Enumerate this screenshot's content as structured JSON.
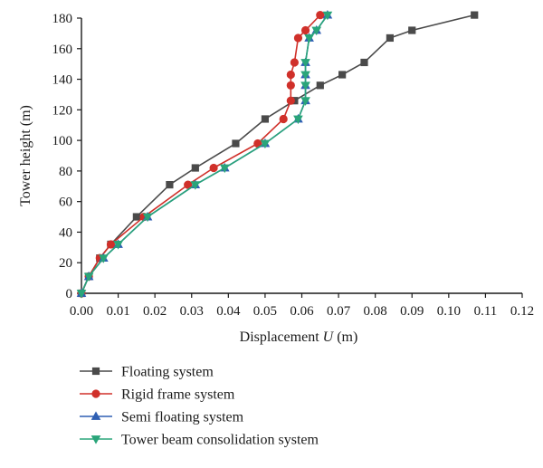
{
  "colors": {
    "floating": "#4a4a4a",
    "rigid": "#d0302a",
    "semi": "#2f5fb3",
    "tower": "#2aa57a",
    "axis": "#1a1a1a"
  },
  "chart_data": {
    "type": "line",
    "xlabel": "Displacement U (m)",
    "xlabel_main": "Displacement ",
    "xlabel_var": "U",
    "xlabel_unit": " (m)",
    "ylabel": "Tower height (m)",
    "xlim": [
      0,
      0.12
    ],
    "ylim": [
      0,
      180
    ],
    "x_ticks": [
      "0.00",
      "0.01",
      "0.02",
      "0.03",
      "0.04",
      "0.05",
      "0.06",
      "0.07",
      "0.08",
      "0.09",
      "0.10",
      "0.11",
      "0.12"
    ],
    "y_ticks": [
      "0",
      "20",
      "40",
      "60",
      "80",
      "100",
      "120",
      "140",
      "160",
      "180"
    ],
    "grid": false,
    "legend_position": "bottom",
    "series": [
      {
        "name": "Floating system",
        "marker": "square",
        "color_key": "floating",
        "points": [
          [
            0.0,
            0
          ],
          [
            0.002,
            11
          ],
          [
            0.005,
            23
          ],
          [
            0.008,
            32
          ],
          [
            0.015,
            50
          ],
          [
            0.024,
            71
          ],
          [
            0.031,
            82
          ],
          [
            0.042,
            98
          ],
          [
            0.05,
            114
          ],
          [
            0.058,
            126
          ],
          [
            0.065,
            136
          ],
          [
            0.071,
            143
          ],
          [
            0.077,
            151
          ],
          [
            0.084,
            167
          ],
          [
            0.09,
            172
          ],
          [
            0.107,
            182
          ]
        ]
      },
      {
        "name": "Rigid frame system",
        "marker": "circle",
        "color_key": "rigid",
        "points": [
          [
            0.0,
            0
          ],
          [
            0.002,
            11
          ],
          [
            0.005,
            23
          ],
          [
            0.008,
            32
          ],
          [
            0.017,
            50
          ],
          [
            0.029,
            71
          ],
          [
            0.036,
            82
          ],
          [
            0.048,
            98
          ],
          [
            0.055,
            114
          ],
          [
            0.057,
            126
          ],
          [
            0.057,
            136
          ],
          [
            0.057,
            143
          ],
          [
            0.058,
            151
          ],
          [
            0.059,
            167
          ],
          [
            0.061,
            172
          ],
          [
            0.065,
            182
          ]
        ]
      },
      {
        "name": "Semi floating system",
        "marker": "triangle-up",
        "color_key": "semi",
        "points": [
          [
            0.0,
            0
          ],
          [
            0.002,
            11
          ],
          [
            0.006,
            23
          ],
          [
            0.01,
            32
          ],
          [
            0.018,
            50
          ],
          [
            0.031,
            71
          ],
          [
            0.039,
            82
          ],
          [
            0.05,
            98
          ],
          [
            0.059,
            114
          ],
          [
            0.061,
            126
          ],
          [
            0.061,
            136
          ],
          [
            0.061,
            143
          ],
          [
            0.061,
            151
          ],
          [
            0.062,
            167
          ],
          [
            0.064,
            172
          ],
          [
            0.067,
            182
          ]
        ]
      },
      {
        "name": "Tower beam consolidation system",
        "marker": "triangle-down",
        "color_key": "tower",
        "points": [
          [
            0.0,
            0
          ],
          [
            0.002,
            11
          ],
          [
            0.006,
            23
          ],
          [
            0.01,
            32
          ],
          [
            0.018,
            50
          ],
          [
            0.031,
            71
          ],
          [
            0.039,
            82
          ],
          [
            0.05,
            98
          ],
          [
            0.059,
            114
          ],
          [
            0.061,
            126
          ],
          [
            0.061,
            136
          ],
          [
            0.061,
            143
          ],
          [
            0.061,
            151
          ],
          [
            0.062,
            167
          ],
          [
            0.064,
            172
          ],
          [
            0.067,
            182
          ]
        ]
      }
    ]
  }
}
